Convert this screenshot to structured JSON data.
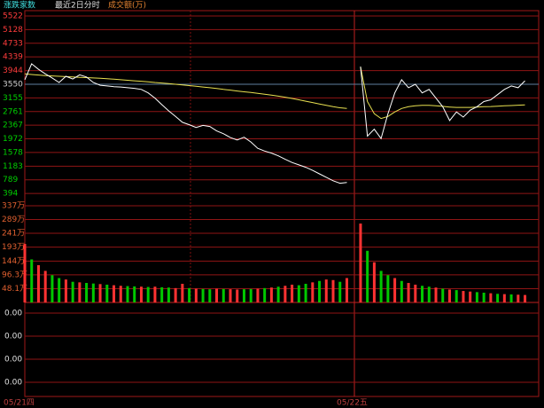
{
  "header": {
    "items": [
      "涨跌家数",
      "最近2日分时",
      "成交额(万)"
    ]
  },
  "chart_data": {
    "type": "line",
    "x": [
      0,
      1,
      2,
      3,
      4,
      5,
      6,
      7,
      8,
      9,
      10,
      11,
      12,
      13,
      14,
      15,
      16,
      17,
      18,
      19,
      20,
      21,
      22,
      23,
      24,
      25,
      26,
      27,
      28,
      29,
      30,
      31,
      32,
      33,
      34,
      35,
      36,
      37,
      38,
      39,
      40,
      41,
      42,
      43,
      44,
      45,
      46,
      47,
      48,
      49,
      50,
      51,
      52,
      53,
      54,
      55,
      56,
      57,
      58,
      59,
      60,
      61,
      62,
      63,
      64,
      65,
      66,
      67,
      68,
      69,
      70,
      71,
      72,
      73
    ],
    "xlim": [
      0,
      75
    ],
    "series": [
      {
        "color": "#ffffff",
        "values": [
          3680,
          4140,
          3980,
          3850,
          3730,
          3600,
          3780,
          3700,
          3820,
          3760,
          3600,
          3520,
          3500,
          3480,
          3470,
          3450,
          3430,
          3400,
          3300,
          3150,
          2960,
          2780,
          2620,
          2450,
          2380,
          2300,
          2360,
          2330,
          2200,
          2120,
          2010,
          1940,
          2020,
          1880,
          1700,
          1620,
          1560,
          1480,
          1380,
          1290,
          1220,
          1150,
          1060,
          960,
          860,
          760,
          690,
          710,
          null,
          4060,
          2050,
          2250,
          1980,
          2700,
          3300,
          3680,
          3450,
          3550,
          3300,
          3400,
          3150,
          2900,
          2500,
          2750,
          2600,
          2800,
          2900,
          3050,
          3100,
          3250,
          3400,
          3500,
          3450,
          3650
        ]
      },
      {
        "color": "#e8e050",
        "values": [
          3850,
          3830,
          3815,
          3800,
          3790,
          3780,
          3770,
          3760,
          3750,
          3740,
          3730,
          3720,
          3710,
          3695,
          3680,
          3665,
          3650,
          3635,
          3620,
          3600,
          3585,
          3570,
          3550,
          3530,
          3510,
          3490,
          3470,
          3450,
          3425,
          3400,
          3380,
          3355,
          3330,
          3310,
          3285,
          3260,
          3235,
          3205,
          3175,
          3140,
          3100,
          3060,
          3020,
          2980,
          2940,
          2900,
          2870,
          2850,
          null,
          4060,
          3050,
          2700,
          2560,
          2620,
          2750,
          2850,
          2900,
          2930,
          2940,
          2940,
          2930,
          2910,
          2890,
          2880,
          2880,
          2880,
          2890,
          2900,
          2905,
          2915,
          2925,
          2935,
          2945,
          2955
        ]
      }
    ],
    "ylim": [
      0,
      5522
    ],
    "yticks": [
      5522,
      5128,
      4733,
      4339,
      3944,
      3550,
      3155,
      2761,
      2367,
      1972,
      1578,
      1183,
      789,
      394
    ],
    "reference": 3550,
    "up_color": "#ff3c3c",
    "down_color": "#00d000",
    "flat_color": "#d0d0d0",
    "grid": true,
    "volume": {
      "values": [
        204,
        150,
        130,
        110,
        95,
        85,
        80,
        72,
        70,
        68,
        66,
        64,
        62,
        60,
        58,
        57,
        56,
        55,
        54,
        55,
        53,
        52,
        50,
        65,
        50,
        48,
        47,
        46,
        48,
        47,
        46,
        45,
        46,
        47,
        48,
        50,
        52,
        55,
        58,
        62,
        60,
        65,
        70,
        75,
        80,
        78,
        72,
        85,
        null,
        275,
        180,
        140,
        110,
        95,
        85,
        75,
        68,
        62,
        58,
        55,
        52,
        48,
        45,
        43,
        40,
        38,
        36,
        34,
        32,
        30,
        29,
        28,
        27,
        26
      ],
      "colors": [
        "#ff3232",
        "#00c800",
        "#ff3232",
        "#ff3232",
        "#00c800",
        "#00c800",
        "#ff3232",
        "#00c800",
        "#ff3232",
        "#00c800",
        "#00c800",
        "#ff3232",
        "#00c800",
        "#ff3232",
        "#ff3232",
        "#00c800",
        "#00c800",
        "#ff3232",
        "#00c800",
        "#ff3232",
        "#00c800",
        "#00c800",
        "#ff3232",
        "#ff3232",
        "#00c800",
        "#ff3232",
        "#00c800",
        "#00c800",
        "#ff3232",
        "#00c800",
        "#ff3232",
        "#ff3232",
        "#00c800",
        "#00c800",
        "#ff3232",
        "#00c800",
        "#ff3232",
        "#00c800",
        "#ff3232",
        "#ff3232",
        "#00c800",
        "#00c800",
        "#ff3232",
        "#00c800",
        "#ff3232",
        "#ff3232",
        "#00c800",
        "#ff3232",
        null,
        "#ff3232",
        "#00c800",
        "#ff3232",
        "#00c800",
        "#00c800",
        "#ff3232",
        "#00c800",
        "#ff3232",
        "#ff3232",
        "#00c800",
        "#00c800",
        "#ff3232",
        "#00c800",
        "#ff3232",
        "#00c800",
        "#ff3232",
        "#ff3232",
        "#00c800",
        "#00c800",
        "#ff3232",
        "#00c800",
        "#ff3232",
        "#00c800",
        "#ff3232",
        "#ff3232"
      ],
      "ylim": [
        0,
        337
      ],
      "yticks": [
        {
          "value": 337,
          "label": "337万"
        },
        {
          "value": 289,
          "label": "289万"
        },
        {
          "value": 241,
          "label": "241万"
        },
        {
          "value": 193,
          "label": "193万"
        },
        {
          "value": 144,
          "label": "144万"
        },
        {
          "value": 96.3,
          "label": "96.3万"
        },
        {
          "value": 48.1,
          "label": "48.1万"
        }
      ],
      "tick_color": "#e06030"
    },
    "day_labels": [
      "05/21四",
      "05/22五"
    ]
  },
  "indicator_panel": {
    "ylabels": [
      "0.00",
      "0.00",
      "0.00",
      "0.00"
    ]
  }
}
